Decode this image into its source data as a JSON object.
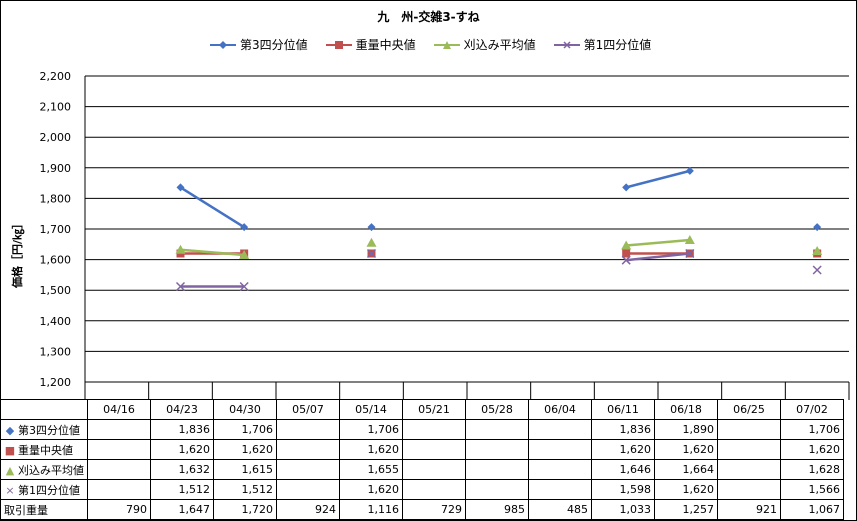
{
  "chart_data": {
    "type": "line",
    "title": "九　州-交雑3-すね",
    "ylabel": "価格［円/㎏］",
    "ylim": [
      1200,
      2200
    ],
    "yticks": [
      "1,200",
      "1,300",
      "1,400",
      "1,500",
      "1,600",
      "1,700",
      "1,800",
      "1,900",
      "2,000",
      "2,100",
      "2,200"
    ],
    "categories": [
      "04/16",
      "04/23",
      "04/30",
      "05/07",
      "05/14",
      "05/21",
      "05/28",
      "06/04",
      "06/11",
      "06/18",
      "06/25",
      "07/02"
    ],
    "series": [
      {
        "name": "第3四分位値",
        "color": "#4472C4",
        "marker": "diamond",
        "values": [
          null,
          1836,
          1706,
          null,
          1706,
          null,
          null,
          null,
          1836,
          1890,
          null,
          1706
        ]
      },
      {
        "name": "重量中央値",
        "color": "#C0504D",
        "marker": "square",
        "values": [
          null,
          1620,
          1620,
          null,
          1620,
          null,
          null,
          null,
          1620,
          1620,
          null,
          1620
        ]
      },
      {
        "name": "刈込み平均値",
        "color": "#9BBB59",
        "marker": "triangle",
        "values": [
          null,
          1632,
          1615,
          null,
          1655,
          null,
          null,
          null,
          1646,
          1664,
          null,
          1628
        ]
      },
      {
        "name": "第1四分位値",
        "color": "#8064A2",
        "marker": "x",
        "values": [
          null,
          1512,
          1512,
          null,
          1620,
          null,
          null,
          null,
          1598,
          1620,
          null,
          1566
        ]
      }
    ],
    "volume": {
      "name": "取引重量",
      "values": [
        "790",
        "1,647",
        "1,720",
        "924",
        "1,116",
        "729",
        "985",
        "485",
        "1,033",
        "1,257",
        "921",
        "1,067"
      ]
    },
    "grid": true,
    "legend": "top"
  },
  "table_rows": [
    {
      "label": "第3四分位値",
      "cells": [
        "",
        "1,836",
        "1,706",
        "",
        "1,706",
        "",
        "",
        "",
        "1,836",
        "1,890",
        "",
        "1,706"
      ]
    },
    {
      "label": "重量中央値",
      "cells": [
        "",
        "1,620",
        "1,620",
        "",
        "1,620",
        "",
        "",
        "",
        "1,620",
        "1,620",
        "",
        "1,620"
      ]
    },
    {
      "label": "刈込み平均値",
      "cells": [
        "",
        "1,632",
        "1,615",
        "",
        "1,655",
        "",
        "",
        "",
        "1,646",
        "1,664",
        "",
        "1,628"
      ]
    },
    {
      "label": "第1四分位値",
      "cells": [
        "",
        "1,512",
        "1,512",
        "",
        "1,620",
        "",
        "",
        "",
        "1,598",
        "1,620",
        "",
        "1,566"
      ]
    },
    {
      "label": "取引重量",
      "cells": [
        "790",
        "1,647",
        "1,720",
        "924",
        "1,116",
        "729",
        "985",
        "485",
        "1,033",
        "1,257",
        "921",
        "1,067"
      ]
    }
  ]
}
